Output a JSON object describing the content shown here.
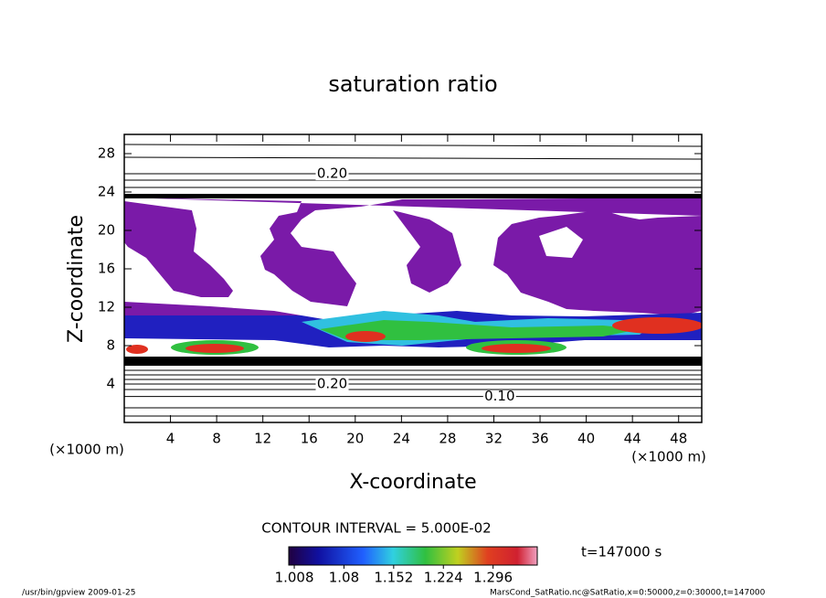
{
  "chart_data": {
    "type": "contour",
    "title": "saturation ratio",
    "x_label": "X-coordinate",
    "y_label": "Z-coordinate",
    "x_unit": "(×1000 m)",
    "y_unit": "(×1000 m)",
    "xlim": [
      0,
      50
    ],
    "ylim": [
      0,
      30
    ],
    "xticks": [
      4,
      8,
      12,
      16,
      20,
      24,
      28,
      32,
      36,
      40,
      44,
      48
    ],
    "yticks": [
      4,
      8,
      12,
      16,
      20,
      24,
      28
    ],
    "contours": [
      {
        "level": 0.2,
        "label": "0.20",
        "z": 25.9
      },
      {
        "level": 0.2,
        "label": "0.20",
        "z": 4.0
      },
      {
        "level": 0.1,
        "label": "0.10",
        "z": 2.7
      }
    ],
    "contour_interval_text": "CONTOUR INTERVAL = 5.000E-02",
    "colorbar": {
      "clim": [
        1.0,
        1.36
      ],
      "ticks": [
        1.008,
        1.08,
        1.152,
        1.224,
        1.296
      ]
    },
    "time_text": "t=147000 s",
    "footer_left": "/usr/bin/gpview  2009-01-25",
    "footer_right": "MarsCond_SatRatio.nc@SatRatio,x=0:50000,z=0:30000,t=147000"
  }
}
